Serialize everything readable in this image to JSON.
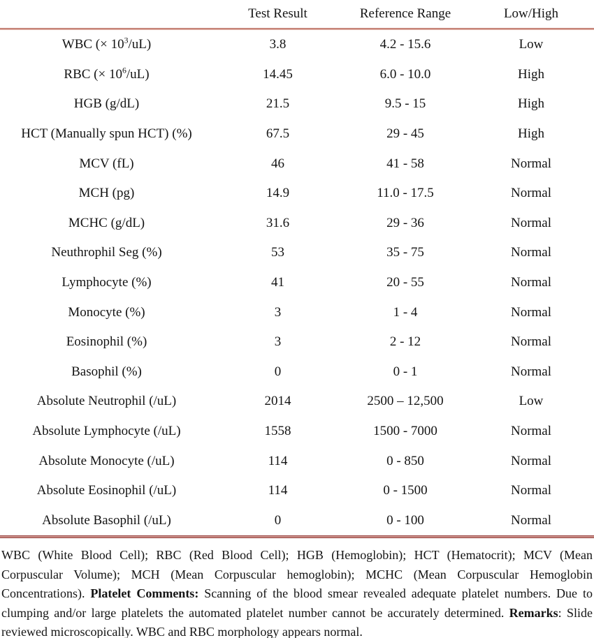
{
  "table": {
    "columns": [
      "",
      "Test Result",
      "Reference Range",
      "Low/High"
    ],
    "rows": [
      {
        "label": [
          {
            "text": "WBC (× 10"
          },
          {
            "sup": "3"
          },
          {
            "text": "/uL)"
          }
        ],
        "result": "3.8",
        "range": "4.2 - 15.6",
        "flag": "Low"
      },
      {
        "label": [
          {
            "text": "RBC (× 10"
          },
          {
            "sup": "6"
          },
          {
            "text": "/uL)"
          }
        ],
        "result": "14.45",
        "range": "6.0 - 10.0",
        "flag": "High"
      },
      {
        "label": [
          {
            "text": "HGB (g/dL)"
          }
        ],
        "result": "21.5",
        "range": "9.5 - 15",
        "flag": "High"
      },
      {
        "label": [
          {
            "text": "HCT (Manually spun HCT) (%)"
          }
        ],
        "result": "67.5",
        "range": "29 - 45",
        "flag": "High"
      },
      {
        "label": [
          {
            "text": "MCV (fL)"
          }
        ],
        "result": "46",
        "range": "41 - 58",
        "flag": "Normal"
      },
      {
        "label": [
          {
            "text": "MCH (pg)"
          }
        ],
        "result": "14.9",
        "range": "11.0 - 17.5",
        "flag": "Normal"
      },
      {
        "label": [
          {
            "text": "MCHC (g/dL)"
          }
        ],
        "result": "31.6",
        "range": "29 - 36",
        "flag": "Normal"
      },
      {
        "label": [
          {
            "text": "Neuthrophil Seg (%)"
          }
        ],
        "result": "53",
        "range": "35 - 75",
        "flag": "Normal"
      },
      {
        "label": [
          {
            "text": "Lymphocyte (%)"
          }
        ],
        "result": "41",
        "range": "20 - 55",
        "flag": "Normal"
      },
      {
        "label": [
          {
            "text": "Monocyte (%)"
          }
        ],
        "result": "3",
        "range": "1 - 4",
        "flag": "Normal"
      },
      {
        "label": [
          {
            "text": "Eosinophil (%)"
          }
        ],
        "result": "3",
        "range": "2 - 12",
        "flag": "Normal"
      },
      {
        "label": [
          {
            "text": "Basophil (%)"
          }
        ],
        "result": "0",
        "range": "0 - 1",
        "flag": "Normal"
      },
      {
        "label": [
          {
            "text": "Absolute Neutrophil (/uL)"
          }
        ],
        "result": "2014",
        "range": "2500 – 12,500",
        "flag": "Low"
      },
      {
        "label": [
          {
            "text": "Absolute Lymphocyte (/uL)"
          }
        ],
        "result": "1558",
        "range": "1500 - 7000",
        "flag": "Normal"
      },
      {
        "label": [
          {
            "text": "Absolute Monocyte (/uL)"
          }
        ],
        "result": "114",
        "range": "0 - 850",
        "flag": "Normal"
      },
      {
        "label": [
          {
            "text": "Absolute Eosinophil (/uL)"
          }
        ],
        "result": "114",
        "range": "0 - 1500",
        "flag": "Normal"
      },
      {
        "label": [
          {
            "text": "Absolute Basophil (/uL)"
          }
        ],
        "result": "0",
        "range": "0 - 100",
        "flag": "Normal"
      }
    ]
  },
  "footnote": {
    "segments": [
      {
        "text": "WBC (White Blood Cell); RBC (Red Blood Cell); HGB (Hemoglobin); HCT (Hematocrit); MCV (Mean Corpuscular Volume); MCH (Mean Corpuscular hemoglobin); MCHC (Mean Corpuscular Hemoglobin Concentrations). "
      },
      {
        "bold": "Platelet Comments:"
      },
      {
        "text": " Scanning of the blood smear revealed adequate platelet numbers. Due to clumping and/or large platelets the automated platelet number cannot be accurately determined. "
      },
      {
        "bold": "Remarks"
      },
      {
        "text": ": Slide reviewed microscopically. WBC and RBC morphology appears normal."
      }
    ]
  },
  "colors": {
    "text": "#141414",
    "rule_top": "#c07a6e",
    "rule_bottom": "#96413e"
  }
}
